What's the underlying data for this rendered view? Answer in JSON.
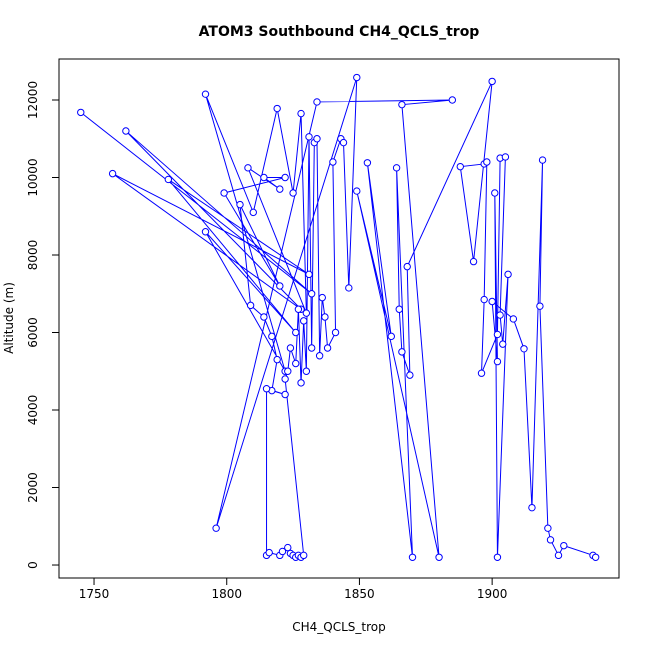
{
  "chart_data": {
    "type": "line",
    "title": "ATOM3 Southbound CH4_QCLS_trop",
    "xlabel": "CH4_QCLS_trop",
    "ylabel": "Altitude (m)",
    "color": "#0000ff",
    "x": [
      1745,
      1832,
      1762,
      1828,
      1757,
      1831,
      1778,
      1826,
      1792,
      1822,
      1792,
      1810,
      1819,
      1825,
      1828,
      1830,
      1808,
      1820,
      1814,
      1822,
      1799,
      1820,
      1805,
      1809,
      1814,
      1817,
      1819,
      1817,
      1822,
      1815,
      1815,
      1816,
      1820,
      1821,
      1823,
      1824,
      1825,
      1826,
      1827,
      1828,
      1829,
      1822,
      1823,
      1824,
      1826,
      1827,
      1828,
      1829,
      1830,
      1831,
      1832,
      1833,
      1834,
      1835,
      1836,
      1837,
      1838,
      1841,
      1840,
      1843,
      1844,
      1846,
      1849,
      1796,
      1834,
      1885,
      1866,
      1880,
      1849,
      1862,
      1853,
      1870,
      1864,
      1865,
      1866,
      1869,
      1868,
      1900,
      1893,
      1888,
      1897,
      1898,
      1897,
      1896,
      1902,
      1903,
      1905,
      1903,
      1904,
      1906,
      1902,
      1901,
      1902,
      1900,
      1908,
      1912,
      1915,
      1919,
      1918,
      1921,
      1922,
      1925,
      1927,
      1938,
      1939
    ],
    "values": [
      11680,
      7000,
      11200,
      6600,
      10100,
      7500,
      9950,
      6000,
      8600,
      5000,
      12150,
      9100,
      11780,
      9600,
      11650,
      6500,
      10250,
      9700,
      10000,
      10000,
      9600,
      7200,
      9300,
      6700,
      6400,
      5900,
      5300,
      4500,
      4400,
      4550,
      250,
      320,
      250,
      350,
      450,
      300,
      250,
      200,
      250,
      200,
      250,
      4800,
      5000,
      5600,
      5200,
      6600,
      4700,
      6300,
      5000,
      11050,
      5600,
      10900,
      11000,
      5400,
      6900,
      6400,
      5600,
      6000,
      10400,
      11000,
      10900,
      7150,
      12580,
      950,
      11950,
      12000,
      11880,
      200,
      9650,
      5900,
      10380,
      200,
      10250,
      6600,
      5500,
      4900,
      7700,
      12480,
      7830,
      10280,
      10350,
      10400,
      6850,
      4950,
      5950,
      10500,
      10530,
      6450,
      5700,
      7500,
      200,
      9600,
      5250,
      6800,
      6350,
      5580,
      1480,
      10450,
      6680,
      950,
      650,
      250,
      500,
      250,
      200
    ],
    "xlim": [
      1736.8,
      1947.8
    ],
    "ylim": [
      -335,
      13058
    ],
    "xticks": [
      1750,
      1800,
      1850,
      1900
    ],
    "yticks": [
      0,
      2000,
      4000,
      6000,
      8000,
      10000,
      12000
    ]
  }
}
